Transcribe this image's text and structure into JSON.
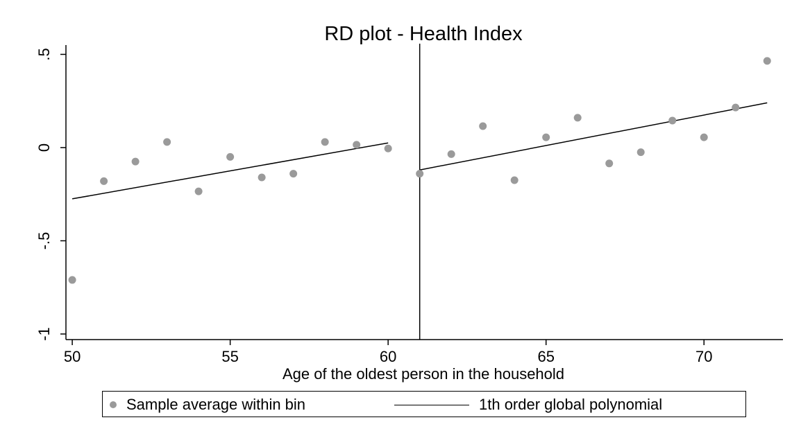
{
  "chart_data": {
    "type": "scatter",
    "title": "RD plot - Health Index",
    "xlabel": "Age of the oldest person in the household",
    "ylabel": "",
    "xlim": [
      49.8,
      72.5
    ],
    "ylim": [
      -1.03,
      0.55
    ],
    "xticks": [
      50,
      55,
      60,
      65,
      70
    ],
    "xtick_labels": [
      "50",
      "55",
      "60",
      "65",
      "70"
    ],
    "yticks": [
      0.5,
      0,
      -0.5,
      -1
    ],
    "ytick_labels": [
      ".5",
      "0",
      "-.5",
      "-1"
    ],
    "cutoff": 61,
    "grid": false,
    "legend_position": "bottom",
    "series": [
      {
        "name": "Sample average within bin",
        "kind": "scatter",
        "color": "#9a9a9a",
        "x": [
          50,
          51,
          52,
          53,
          54,
          55,
          56,
          57,
          58,
          59,
          60,
          61,
          62,
          63,
          64,
          65,
          66,
          67,
          68,
          69,
          70,
          71,
          72
        ],
        "y": [
          -0.71,
          -0.18,
          -0.075,
          0.03,
          -0.235,
          -0.05,
          -0.16,
          -0.14,
          0.03,
          0.015,
          -0.005,
          -0.14,
          -0.035,
          0.115,
          -0.175,
          0.055,
          0.16,
          -0.085,
          -0.025,
          0.145,
          0.055,
          0.215,
          0.465
        ]
      },
      {
        "name": "1th order global polynomial",
        "kind": "line",
        "color": "#000000",
        "segments": [
          {
            "x": [
              50,
              60
            ],
            "y": [
              -0.275,
              0.025
            ]
          },
          {
            "x": [
              61,
              72
            ],
            "y": [
              -0.12,
              0.24
            ]
          }
        ]
      }
    ]
  }
}
